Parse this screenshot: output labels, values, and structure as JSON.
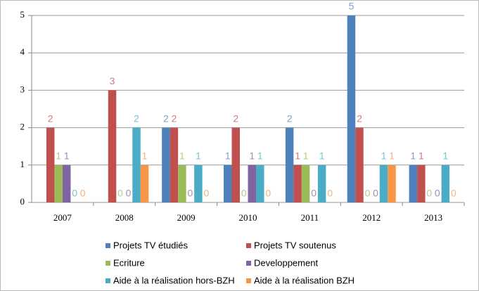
{
  "chart_data": {
    "type": "bar",
    "categories": [
      "2007",
      "2008",
      "2009",
      "2010",
      "2011",
      "2012",
      "2013"
    ],
    "series": [
      {
        "name": "Projets TV étudiés",
        "color": "#4f81bd",
        "values": [
          null,
          null,
          2,
          1,
          2,
          5,
          1
        ]
      },
      {
        "name": "Projets TV soutenus",
        "color": "#c0504d",
        "values": [
          2,
          3,
          2,
          2,
          1,
          2,
          1
        ]
      },
      {
        "name": "Ecriture",
        "color": "#9bbb59",
        "values": [
          1,
          0,
          1,
          0,
          1,
          0,
          0
        ]
      },
      {
        "name": "Developpement",
        "color": "#8064a2",
        "values": [
          1,
          0,
          0,
          1,
          0,
          0,
          0
        ]
      },
      {
        "name": "Aide à la réalisation hors-BZH",
        "color": "#4bacc6",
        "values": [
          0,
          2,
          1,
          1,
          1,
          1,
          1
        ]
      },
      {
        "name": "Aide à la réalisation BZH",
        "color": "#f79646",
        "values": [
          0,
          1,
          0,
          0,
          0,
          1,
          0
        ]
      }
    ],
    "ylim": [
      0,
      5
    ],
    "yticks": [
      0,
      1,
      2,
      3,
      4,
      5
    ],
    "grid": true,
    "legend": "bottom"
  }
}
